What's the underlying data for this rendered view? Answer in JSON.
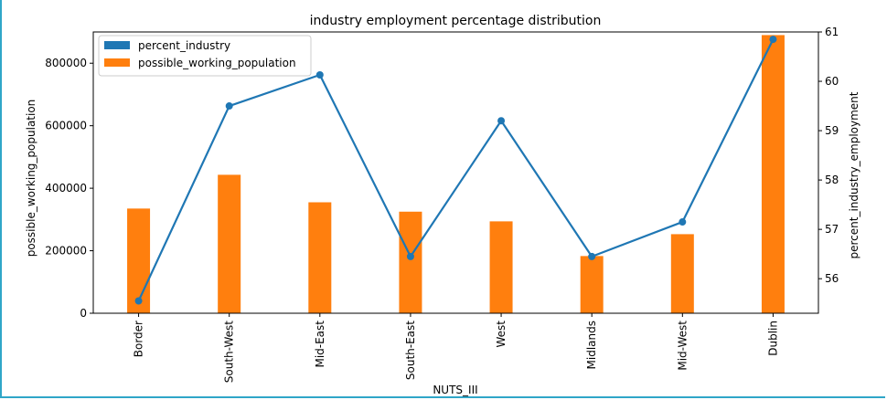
{
  "chart_data": {
    "type": "bar+line",
    "title": "industry employment percentage distribution",
    "xlabel": "NUTS_III",
    "ylabel_left": "possible_working_population",
    "ylabel_right": "percent_industry_employment",
    "categories": [
      "Border",
      "South-West",
      "Mid-East",
      "South-East",
      "West",
      "Midlands",
      "Mid-West",
      "Dublin"
    ],
    "series": [
      {
        "name": "percent_industry",
        "type": "line",
        "axis": "right",
        "color": "#1f77b4",
        "values": [
          55.55,
          59.5,
          60.13,
          56.45,
          59.2,
          56.45,
          57.15,
          60.85
        ]
      },
      {
        "name": "possible_working_population",
        "type": "bar",
        "axis": "left",
        "color": "#ff7f0e",
        "values": [
          335000,
          443000,
          355000,
          325000,
          294000,
          183000,
          253000,
          890000
        ]
      }
    ],
    "ylim_left": [
      0,
      900000
    ],
    "yticks_left": [
      0,
      200000,
      400000,
      600000,
      800000
    ],
    "ylim_right": [
      55.3,
      61.0
    ],
    "yticks_right": [
      56,
      57,
      58,
      59,
      60,
      61
    ],
    "legend_position": "upper-left",
    "grid": false
  },
  "text": {
    "title": "industry employment percentage distribution",
    "xlabel": "NUTS_III",
    "ylabel_left": "possible_working_population",
    "ylabel_right": "percent_industry_employment",
    "legend_line": "percent_industry",
    "legend_bar": "possible_working_population"
  }
}
